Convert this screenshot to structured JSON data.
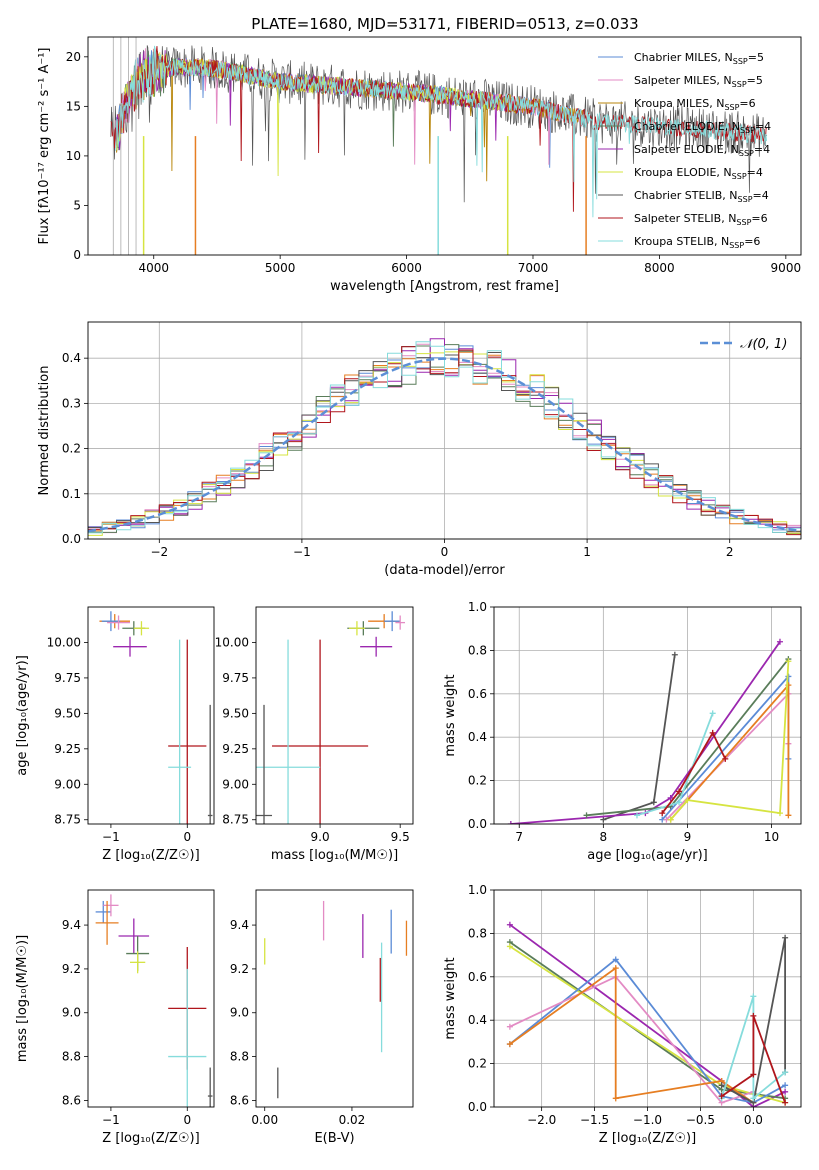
{
  "figure": {
    "title": "PLATE=1680, MJD=53171, FIBERID=0513, z=0.033"
  },
  "colors": {
    "chabrier_miles": "#5b8bd6",
    "salpeter_miles": "#e38bc4",
    "kroupa_miles": "#b8860b",
    "chabrier_elodie": "#5a7d5a",
    "salpeter_elodie": "#9b27af",
    "kroupa_elodie": "#d6e441",
    "chabrier_stelib": "#555555",
    "salpeter_stelib": "#b0161c",
    "kroupa_stelib": "#86dcdc",
    "orange": "#e67e22",
    "normal_curve": "#5b8fd6"
  },
  "chart_data": [
    {
      "type": "line",
      "title": "PLATE=1680, MJD=53171, FIBERID=0513, z=0.033",
      "xlabel": "wavelength [Angstrom, rest frame]",
      "ylabel": "Flux [fλ10⁻¹⁷ erg cm⁻² s⁻¹ A⁻¹]",
      "xlim": [
        3480,
        9120
      ],
      "ylim": [
        0,
        22
      ],
      "xticks": [
        4000,
        5000,
        6000,
        7000,
        8000,
        9000
      ],
      "yticks": [
        0,
        5,
        10,
        15,
        20
      ],
      "grid": false,
      "legend_position": "top-right",
      "series": [
        {
          "name": "Chabrier MILES, N_SSP=5",
          "color_key": "chabrier_miles",
          "x_range": [
            3700,
            7400
          ]
        },
        {
          "name": "Salpeter MILES, N_SSP=5",
          "color_key": "salpeter_miles",
          "x_range": [
            3700,
            7400
          ]
        },
        {
          "name": "Kroupa MILES, N_SSP=6",
          "color_key": "kroupa_miles",
          "x_range": [
            3700,
            7400
          ]
        },
        {
          "name": "Chabrier ELODIE, N_SSP=4",
          "color_key": "chabrier_elodie",
          "x_range": [
            3700,
            6800
          ]
        },
        {
          "name": "Salpeter ELODIE, N_SSP=4",
          "color_key": "salpeter_elodie",
          "x_range": [
            3700,
            6800
          ]
        },
        {
          "name": "Kroupa ELODIE, N_SSP=4",
          "color_key": "kroupa_elodie",
          "x_range": [
            3700,
            6800
          ]
        },
        {
          "name": "Chabrier STELIB, N_SSP=4",
          "color_key": "chabrier_stelib",
          "x_range": [
            3660,
            8850
          ]
        },
        {
          "name": "Salpeter STELIB, N_SSP=6",
          "color_key": "salpeter_stelib",
          "x_range": [
            3660,
            8850
          ]
        },
        {
          "name": "Kroupa STELIB, N_SSP=6",
          "color_key": "kroupa_stelib",
          "x_range": [
            3700,
            8850
          ]
        }
      ],
      "continuum": [
        [
          3700,
          12
        ],
        [
          3800,
          16
        ],
        [
          3900,
          18
        ],
        [
          4000,
          18.5
        ],
        [
          4200,
          19
        ],
        [
          4500,
          18.8
        ],
        [
          4800,
          18
        ],
        [
          5000,
          17.5
        ],
        [
          5500,
          17
        ],
        [
          6000,
          16.5
        ],
        [
          6500,
          15.8
        ],
        [
          7000,
          15
        ],
        [
          7500,
          13.5
        ],
        [
          8000,
          13
        ],
        [
          8500,
          12.5
        ],
        [
          8850,
          12
        ]
      ],
      "dropouts": [
        [
          3920,
          "kroupa_elodie"
        ],
        [
          4330,
          "orange"
        ],
        [
          6250,
          "kroupa_stelib"
        ],
        [
          6800,
          "kroupa_elodie"
        ],
        [
          7420,
          "orange"
        ]
      ]
    },
    {
      "type": "line",
      "xlabel": "(data-model)/error",
      "ylabel": "Normed distribution",
      "xlim": [
        -2.5,
        2.5
      ],
      "ylim": [
        0,
        0.48
      ],
      "xticks": [
        -2,
        -1,
        0,
        1,
        2
      ],
      "yticks": [
        0.0,
        0.1,
        0.2,
        0.3,
        0.4
      ],
      "grid": true,
      "legend_position": "top-right",
      "legend": [
        "𝒩(0, 1)"
      ],
      "bin_width": 0.1,
      "normal_curve": {
        "mu": 0,
        "sigma": 1
      }
    },
    {
      "type": "scatter",
      "xlabel": "Z [log₁₀(Z/Z☉)]",
      "ylabel": "age  [log₁₀(age/yr)]",
      "xlim": [
        -1.3,
        0.35
      ],
      "ylim": [
        8.72,
        10.25
      ],
      "xticks": [
        -1,
        0
      ],
      "yticks": [
        8.75,
        9.0,
        9.25,
        9.5,
        9.75,
        10.0
      ],
      "points": [
        {
          "x": -0.95,
          "y": 10.15,
          "xerr": 0.2,
          "yerr": 0.05,
          "color_key": "orange"
        },
        {
          "x": -1.0,
          "y": 10.15,
          "xerr": 0.12,
          "yerr": 0.07,
          "color_key": "chabrier_miles"
        },
        {
          "x": -0.9,
          "y": 10.14,
          "xerr": 0.15,
          "yerr": 0.05,
          "color_key": "salpeter_miles"
        },
        {
          "x": -0.7,
          "y": 10.1,
          "xerr": 0.15,
          "yerr": 0.05,
          "color_key": "chabrier_elodie"
        },
        {
          "x": -0.6,
          "y": 10.1,
          "xerr": 0.1,
          "yerr": 0.05,
          "color_key": "kroupa_elodie"
        },
        {
          "x": -0.75,
          "y": 9.97,
          "xerr": 0.22,
          "yerr": 0.07,
          "color_key": "salpeter_elodie"
        },
        {
          "x": 0.0,
          "y": 9.27,
          "xerr": 0.25,
          "yerr": 0.75,
          "color_key": "salpeter_stelib"
        },
        {
          "x": -0.1,
          "y": 9.12,
          "xerr": 0.15,
          "yerr": 0.9,
          "color_key": "kroupa_stelib"
        },
        {
          "x": 0.3,
          "y": 8.78,
          "xerr": 0.03,
          "yerr": 0.78,
          "color_key": "chabrier_stelib"
        }
      ]
    },
    {
      "type": "scatter",
      "xlabel": "mass [log₁₀(M/M☉)]",
      "ylabel": "",
      "xlim": [
        8.6,
        9.58
      ],
      "ylim": [
        8.72,
        10.25
      ],
      "xticks": [
        9.0,
        9.5
      ],
      "yticks": [
        8.75,
        9.0,
        9.25,
        9.5,
        9.75,
        10.0
      ],
      "points": [
        {
          "x": 9.4,
          "y": 10.15,
          "xerr": 0.1,
          "yerr": 0.05,
          "color_key": "orange"
        },
        {
          "x": 9.45,
          "y": 10.15,
          "xerr": 0.05,
          "yerr": 0.07,
          "color_key": "chabrier_miles"
        },
        {
          "x": 9.5,
          "y": 10.14,
          "xerr": 0.03,
          "yerr": 0.05,
          "color_key": "salpeter_miles"
        },
        {
          "x": 9.27,
          "y": 10.1,
          "xerr": 0.1,
          "yerr": 0.05,
          "color_key": "chabrier_elodie"
        },
        {
          "x": 9.23,
          "y": 10.1,
          "xerr": 0.05,
          "yerr": 0.05,
          "color_key": "kroupa_elodie"
        },
        {
          "x": 9.35,
          "y": 9.97,
          "xerr": 0.1,
          "yerr": 0.07,
          "color_key": "salpeter_elodie"
        },
        {
          "x": 9.0,
          "y": 9.27,
          "xerr": 0.3,
          "yerr": 0.75,
          "color_key": "salpeter_stelib"
        },
        {
          "x": 8.8,
          "y": 9.12,
          "xerr": 0.2,
          "yerr": 0.9,
          "color_key": "kroupa_stelib"
        },
        {
          "x": 8.65,
          "y": 8.78,
          "xerr": 0.05,
          "yerr": 0.78,
          "color_key": "chabrier_stelib"
        }
      ]
    },
    {
      "type": "line",
      "xlabel": "age  [log₁₀(age/yr)]",
      "ylabel": "mass weight",
      "xlim": [
        6.7,
        10.35
      ],
      "ylim": [
        0,
        1.0
      ],
      "xticks": [
        7,
        8,
        9,
        10
      ],
      "yticks": [
        0.0,
        0.2,
        0.4,
        0.6,
        0.8,
        1.0
      ],
      "grid": true,
      "series": [
        {
          "color_key": "chabrier_stelib",
          "x": [
            8.0,
            8.6,
            8.85
          ],
          "y": [
            0.02,
            0.1,
            0.78
          ]
        },
        {
          "color_key": "salpeter_elodie",
          "x": [
            6.9,
            8.5,
            8.8,
            10.1
          ],
          "y": [
            0.0,
            0.05,
            0.12,
            0.84
          ]
        },
        {
          "color_key": "chabrier_elodie",
          "x": [
            7.8,
            8.8,
            10.2
          ],
          "y": [
            0.04,
            0.08,
            0.76
          ]
        },
        {
          "color_key": "chabrier_miles",
          "x": [
            8.7,
            10.2,
            10.2
          ],
          "y": [
            0.02,
            0.68,
            0.3
          ]
        },
        {
          "color_key": "salpeter_miles",
          "x": [
            8.75,
            10.2,
            10.2
          ],
          "y": [
            0.02,
            0.6,
            0.37
          ]
        },
        {
          "color_key": "orange",
          "x": [
            8.8,
            10.2,
            10.2
          ],
          "y": [
            0.02,
            0.64,
            0.04
          ]
        },
        {
          "color_key": "kroupa_stelib",
          "x": [
            8.4,
            8.9,
            9.3
          ],
          "y": [
            0.04,
            0.1,
            0.51
          ]
        },
        {
          "color_key": "salpeter_stelib",
          "x": [
            8.7,
            8.9,
            9.3,
            9.45
          ],
          "y": [
            0.05,
            0.15,
            0.42,
            0.3
          ]
        },
        {
          "color_key": "kroupa_elodie",
          "x": [
            8.8,
            9.0,
            10.1,
            10.2
          ],
          "y": [
            0.02,
            0.11,
            0.05,
            0.75
          ]
        }
      ]
    },
    {
      "type": "scatter",
      "xlabel": "Z [log₁₀(Z/Z☉)]",
      "ylabel": "mass [log₁₀(M/M☉)]",
      "xlim": [
        -1.3,
        0.35
      ],
      "ylim": [
        8.57,
        9.56
      ],
      "xticks": [
        -1,
        0
      ],
      "yticks": [
        8.6,
        8.8,
        9.0,
        9.2,
        9.4
      ],
      "points": [
        {
          "x": -1.1,
          "y": 9.46,
          "xerr": 0.1,
          "yerr": 0.05,
          "color_key": "chabrier_miles"
        },
        {
          "x": -1.0,
          "y": 9.49,
          "xerr": 0.1,
          "yerr": 0.05,
          "color_key": "salpeter_miles"
        },
        {
          "x": -1.05,
          "y": 9.41,
          "xerr": 0.15,
          "yerr": 0.1,
          "color_key": "orange"
        },
        {
          "x": -0.7,
          "y": 9.35,
          "xerr": 0.2,
          "yerr": 0.08,
          "color_key": "salpeter_elodie"
        },
        {
          "x": -0.65,
          "y": 9.27,
          "xerr": 0.15,
          "yerr": 0.08,
          "color_key": "chabrier_elodie"
        },
        {
          "x": -0.65,
          "y": 9.23,
          "xerr": 0.1,
          "yerr": 0.05,
          "color_key": "kroupa_elodie"
        },
        {
          "x": 0.0,
          "y": 9.02,
          "xerr": 0.25,
          "yerr": 0.28,
          "color_key": "salpeter_stelib"
        },
        {
          "x": 0.0,
          "y": 8.8,
          "xerr": 0.25,
          "yerr": 0.4,
          "color_key": "kroupa_stelib"
        },
        {
          "x": 0.3,
          "y": 8.62,
          "xerr": 0.03,
          "yerr": 0.13,
          "color_key": "chabrier_stelib"
        }
      ]
    },
    {
      "type": "scatter",
      "xlabel": "E(B-V)",
      "ylabel": "",
      "xlim": [
        -0.002,
        0.034
      ],
      "ylim": [
        8.57,
        9.56
      ],
      "xticks": [
        0.0,
        0.02
      ],
      "yticks": [
        8.6,
        8.8,
        9.0,
        9.2,
        9.4
      ],
      "points": [
        {
          "x": 0.0,
          "y": 9.28,
          "yerr": 0.06,
          "color_key": "kroupa_elodie"
        },
        {
          "x": 0.003,
          "y": 8.68,
          "yerr": 0.07,
          "color_key": "chabrier_stelib"
        },
        {
          "x": 0.0135,
          "y": 9.42,
          "yerr": 0.09,
          "color_key": "salpeter_miles"
        },
        {
          "x": 0.0225,
          "y": 9.35,
          "yerr": 0.1,
          "color_key": "salpeter_elodie"
        },
        {
          "x": 0.0265,
          "y": 9.15,
          "yerr": 0.1,
          "color_key": "salpeter_stelib"
        },
        {
          "x": 0.0268,
          "y": 9.07,
          "yerr": 0.25,
          "color_key": "kroupa_stelib"
        },
        {
          "x": 0.029,
          "y": 9.37,
          "yerr": 0.1,
          "color_key": "chabrier_miles"
        },
        {
          "x": 0.0325,
          "y": 9.34,
          "yerr": 0.08,
          "color_key": "orange"
        }
      ]
    },
    {
      "type": "line",
      "xlabel": "Z [log₁₀(Z/Z☉)]",
      "ylabel": "mass weight",
      "xlim": [
        -2.45,
        0.45
      ],
      "ylim": [
        0,
        1.0
      ],
      "xticks": [
        -2.0,
        -1.5,
        -1.0,
        -0.5,
        0.0
      ],
      "yticks": [
        0.0,
        0.2,
        0.4,
        0.6,
        0.8,
        1.0
      ],
      "grid": true,
      "series": [
        {
          "color_key": "salpeter_elodie",
          "x": [
            -2.3,
            -0.3,
            0.0,
            0.3
          ],
          "y": [
            0.84,
            0.12,
            0.0,
            0.07
          ]
        },
        {
          "color_key": "chabrier_elodie",
          "x": [
            -2.3,
            -0.3,
            0.3
          ],
          "y": [
            0.76,
            0.08,
            0.04
          ]
        },
        {
          "color_key": "kroupa_elodie",
          "x": [
            -2.3,
            -0.3,
            0.3
          ],
          "y": [
            0.74,
            0.1,
            0.02
          ]
        },
        {
          "color_key": "chabrier_miles",
          "x": [
            -2.3,
            -1.3,
            -0.3,
            0.0,
            0.3
          ],
          "y": [
            0.29,
            0.68,
            0.05,
            0.02,
            0.1
          ]
        },
        {
          "color_key": "salpeter_miles",
          "x": [
            -2.3,
            -1.3,
            -0.3,
            0.0
          ],
          "y": [
            0.37,
            0.6,
            0.02,
            0.07
          ]
        },
        {
          "color_key": "orange",
          "x": [
            -2.3,
            -1.3,
            -1.3,
            -0.3,
            0.0
          ],
          "y": [
            0.29,
            0.64,
            0.04,
            0.12,
            0.02
          ]
        },
        {
          "color_key": "chabrier_stelib",
          "x": [
            -0.3,
            0.0,
            0.3,
            0.3
          ],
          "y": [
            0.1,
            0.02,
            0.78,
            0.16
          ]
        },
        {
          "color_key": "kroupa_stelib",
          "x": [
            -0.3,
            0.0,
            0.0,
            0.3
          ],
          "y": [
            0.04,
            0.51,
            0.04,
            0.16
          ]
        },
        {
          "color_key": "salpeter_stelib",
          "x": [
            -0.3,
            0.0,
            0.0,
            0.3
          ],
          "y": [
            0.05,
            0.15,
            0.42,
            0.02
          ]
        }
      ]
    }
  ]
}
